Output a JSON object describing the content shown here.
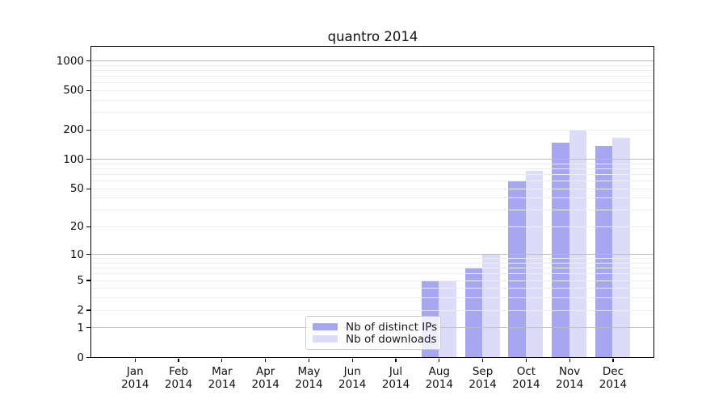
{
  "figure": {
    "background": "#ffffff",
    "text_color": "#111111"
  },
  "chart_data": {
    "type": "bar",
    "title": "quantro 2014",
    "categories": [
      "Jan",
      "Feb",
      "Mar",
      "Apr",
      "May",
      "Jun",
      "Jul",
      "Aug",
      "Sep",
      "Oct",
      "Nov",
      "Dec"
    ],
    "x_tick_sublabels": [
      "2014",
      "2014",
      "2014",
      "2014",
      "2014",
      "2014",
      "2014",
      "2014",
      "2014",
      "2014",
      "2014",
      "2014"
    ],
    "series": [
      {
        "name": "Nb of distinct IPs",
        "color": "#a6a6f1",
        "values": [
          0,
          0,
          0,
          0,
          0,
          0,
          0,
          5,
          7,
          60,
          148,
          135
        ]
      },
      {
        "name": "Nb of downloads",
        "color": "#dcdcf9",
        "values": [
          0,
          0,
          0,
          0,
          0,
          0,
          0,
          5,
          10,
          75,
          196,
          164
        ]
      }
    ],
    "y_axis": {
      "scale": "log1p",
      "tick_values": [
        0,
        1,
        2,
        5,
        10,
        20,
        50,
        100,
        200,
        500,
        1000
      ],
      "tick_labels": [
        "0",
        "1",
        "2",
        "5",
        "10",
        "20",
        "50",
        "100",
        "200",
        "500",
        "1000"
      ],
      "max_value": 1380,
      "major_grid_at": [
        1,
        10,
        100,
        1000
      ]
    },
    "grid": {
      "major_color": "#bcbcbc",
      "minor_color": "#ededed"
    },
    "legend": {
      "position": "lower-center-left",
      "background": "rgba(255,255,255,0.8)",
      "border_color": "#cccccc"
    }
  }
}
